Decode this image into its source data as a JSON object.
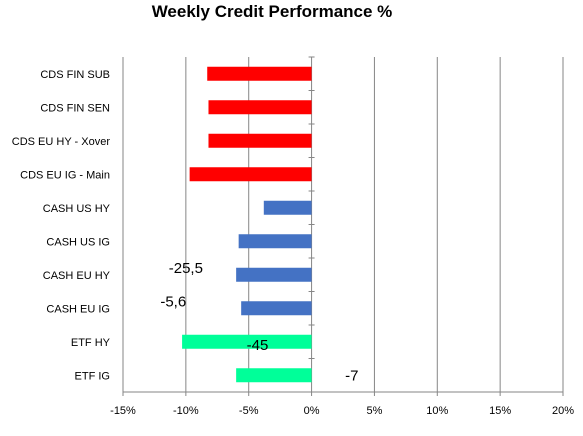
{
  "chart_data": {
    "type": "bar",
    "orientation": "horizontal",
    "title": "Weekly Credit Performance %",
    "xlabel": "",
    "ylabel": "",
    "categories": [
      "CDS FIN SUB",
      "CDS FIN SEN",
      "CDS EU HY - Xover",
      "CDS EU IG - Main",
      "CASH US HY",
      "CASH US IG",
      "CASH EU HY",
      "CASH EU IG",
      "ETF HY",
      "ETF IG"
    ],
    "values": [
      -8.3,
      -8.2,
      -8.2,
      -9.7,
      -3.8,
      -5.8,
      -6.0,
      -5.6,
      -10.3,
      -6.0
    ],
    "colors": [
      "#ff0000",
      "#ff0000",
      "#ff0000",
      "#ff0000",
      "#4472c4",
      "#4472c4",
      "#4472c4",
      "#4472c4",
      "#00ff99",
      "#00ff99"
    ],
    "xlim": [
      -15,
      20
    ],
    "xticks": [
      -15,
      -10,
      -5,
      0,
      5,
      10,
      15,
      20
    ],
    "xtick_labels": [
      "-15%",
      "-10%",
      "-5%",
      "0%",
      "5%",
      "10%",
      "15%",
      "20%"
    ],
    "grid": "vertical",
    "legend": "none",
    "annotations": [
      {
        "text": "-25,5",
        "x": -10.0,
        "category": "CASH EU HY",
        "offset": -0.2
      },
      {
        "text": "-5,6",
        "x": -11.0,
        "category": "CASH EU IG",
        "offset": -0.2
      },
      {
        "text": "-45",
        "x": -4.3,
        "category": "ETF HY",
        "offset": 0.1
      },
      {
        "text": "-7",
        "x": 3.2,
        "category": "ETF IG",
        "offset": 0.0
      }
    ]
  }
}
